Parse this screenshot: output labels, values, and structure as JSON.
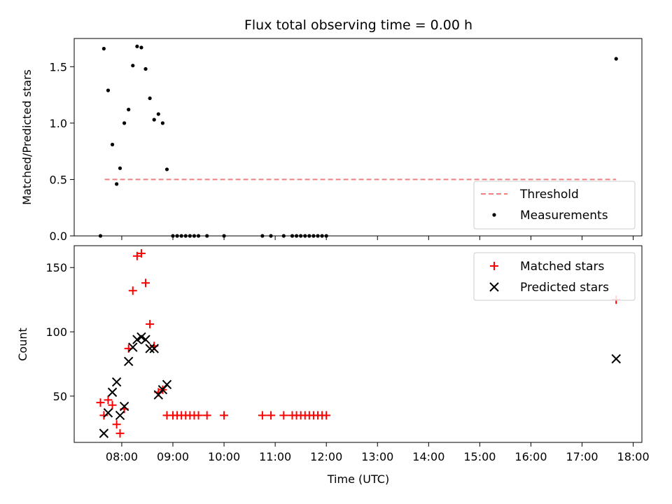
{
  "chart_data": [
    {
      "type": "scatter",
      "title": "Flux total observing time = 0.00 h",
      "ylabel": "Matched/Predicted stars",
      "xlim_hours": [
        7.07,
        18.17
      ],
      "ylim": [
        0,
        1.75
      ],
      "yticks": [
        0.0,
        0.5,
        1.0,
        1.5
      ],
      "ytick_labels": [
        "0.0",
        "0.5",
        "1.0",
        "1.5"
      ],
      "legend_position": "lower-right",
      "threshold": {
        "name": "Threshold",
        "value": 0.5,
        "x_start": "07:40",
        "x_end": "17:40",
        "color": "#f08080"
      },
      "series": [
        {
          "name": "Measurements",
          "color": "#000000",
          "points": [
            {
              "x": "07:35",
              "y": 0.0
            },
            {
              "x": "07:39",
              "y": 1.66
            },
            {
              "x": "07:44",
              "y": 1.29
            },
            {
              "x": "07:49",
              "y": 0.81
            },
            {
              "x": "07:54",
              "y": 0.46
            },
            {
              "x": "07:58",
              "y": 0.6
            },
            {
              "x": "08:03",
              "y": 1.0
            },
            {
              "x": "08:08",
              "y": 1.12
            },
            {
              "x": "08:13",
              "y": 1.51
            },
            {
              "x": "08:18",
              "y": 1.68
            },
            {
              "x": "08:23",
              "y": 1.67
            },
            {
              "x": "08:28",
              "y": 1.48
            },
            {
              "x": "08:33",
              "y": 1.22
            },
            {
              "x": "08:38",
              "y": 1.03
            },
            {
              "x": "08:43",
              "y": 1.08
            },
            {
              "x": "08:48",
              "y": 1.0
            },
            {
              "x": "08:53",
              "y": 0.59
            },
            {
              "x": "09:00",
              "y": 0.0
            },
            {
              "x": "09:05",
              "y": 0.0
            },
            {
              "x": "09:10",
              "y": 0.0
            },
            {
              "x": "09:15",
              "y": 0.0
            },
            {
              "x": "09:20",
              "y": 0.0
            },
            {
              "x": "09:25",
              "y": 0.0
            },
            {
              "x": "09:30",
              "y": 0.0
            },
            {
              "x": "09:40",
              "y": 0.0
            },
            {
              "x": "10:00",
              "y": 0.0
            },
            {
              "x": "10:45",
              "y": 0.0
            },
            {
              "x": "10:55",
              "y": 0.0
            },
            {
              "x": "11:10",
              "y": 0.0
            },
            {
              "x": "11:20",
              "y": 0.0
            },
            {
              "x": "11:25",
              "y": 0.0
            },
            {
              "x": "11:30",
              "y": 0.0
            },
            {
              "x": "11:35",
              "y": 0.0
            },
            {
              "x": "11:40",
              "y": 0.0
            },
            {
              "x": "11:45",
              "y": 0.0
            },
            {
              "x": "11:50",
              "y": 0.0
            },
            {
              "x": "11:55",
              "y": 0.0
            },
            {
              "x": "12:00",
              "y": 0.0
            },
            {
              "x": "17:40",
              "y": 1.57
            }
          ]
        }
      ]
    },
    {
      "type": "scatter",
      "xlabel": "Time (UTC)",
      "ylabel": "Count",
      "xlim_hours": [
        7.07,
        18.17
      ],
      "ylim": [
        14,
        167
      ],
      "yticks": [
        50,
        100,
        150
      ],
      "ytick_labels": [
        "50",
        "100",
        "150"
      ],
      "xticks": [
        "08:00",
        "09:00",
        "10:00",
        "11:00",
        "12:00",
        "13:00",
        "14:00",
        "15:00",
        "16:00",
        "17:00",
        "18:00"
      ],
      "legend_position": "upper-right",
      "series": [
        {
          "name": "Matched stars",
          "marker": "+",
          "color": "#ff0000",
          "points": [
            {
              "x": "07:35",
              "y": 45
            },
            {
              "x": "07:39",
              "y": 35
            },
            {
              "x": "07:44",
              "y": 47
            },
            {
              "x": "07:49",
              "y": 43
            },
            {
              "x": "07:54",
              "y": 28
            },
            {
              "x": "07:58",
              "y": 21
            },
            {
              "x": "08:03",
              "y": 40
            },
            {
              "x": "08:08",
              "y": 87
            },
            {
              "x": "08:13",
              "y": 132
            },
            {
              "x": "08:18",
              "y": 159
            },
            {
              "x": "08:23",
              "y": 161
            },
            {
              "x": "08:28",
              "y": 138
            },
            {
              "x": "08:33",
              "y": 106
            },
            {
              "x": "08:38",
              "y": 89
            },
            {
              "x": "08:43",
              "y": 53
            },
            {
              "x": "08:48",
              "y": 55
            },
            {
              "x": "08:53",
              "y": 35
            },
            {
              "x": "09:00",
              "y": 35
            },
            {
              "x": "09:05",
              "y": 35
            },
            {
              "x": "09:10",
              "y": 35
            },
            {
              "x": "09:15",
              "y": 35
            },
            {
              "x": "09:20",
              "y": 35
            },
            {
              "x": "09:25",
              "y": 35
            },
            {
              "x": "09:30",
              "y": 35
            },
            {
              "x": "09:40",
              "y": 35
            },
            {
              "x": "10:00",
              "y": 35
            },
            {
              "x": "10:45",
              "y": 35
            },
            {
              "x": "10:55",
              "y": 35
            },
            {
              "x": "11:10",
              "y": 35
            },
            {
              "x": "11:20",
              "y": 35
            },
            {
              "x": "11:25",
              "y": 35
            },
            {
              "x": "11:30",
              "y": 35
            },
            {
              "x": "11:35",
              "y": 35
            },
            {
              "x": "11:40",
              "y": 35
            },
            {
              "x": "11:45",
              "y": 35
            },
            {
              "x": "11:50",
              "y": 35
            },
            {
              "x": "11:55",
              "y": 35
            },
            {
              "x": "12:00",
              "y": 35
            },
            {
              "x": "17:40",
              "y": 125
            }
          ]
        },
        {
          "name": "Predicted stars",
          "marker": "x",
          "color": "#000000",
          "points": [
            {
              "x": "07:39",
              "y": 21
            },
            {
              "x": "07:44",
              "y": 37
            },
            {
              "x": "07:49",
              "y": 53
            },
            {
              "x": "07:54",
              "y": 61
            },
            {
              "x": "07:58",
              "y": 35
            },
            {
              "x": "08:03",
              "y": 42
            },
            {
              "x": "08:08",
              "y": 77
            },
            {
              "x": "08:13",
              "y": 88
            },
            {
              "x": "08:18",
              "y": 94
            },
            {
              "x": "08:23",
              "y": 96
            },
            {
              "x": "08:28",
              "y": 94
            },
            {
              "x": "08:33",
              "y": 87
            },
            {
              "x": "08:38",
              "y": 87
            },
            {
              "x": "08:43",
              "y": 51
            },
            {
              "x": "08:48",
              "y": 55
            },
            {
              "x": "08:53",
              "y": 59
            },
            {
              "x": "17:40",
              "y": 79
            }
          ]
        }
      ]
    }
  ]
}
